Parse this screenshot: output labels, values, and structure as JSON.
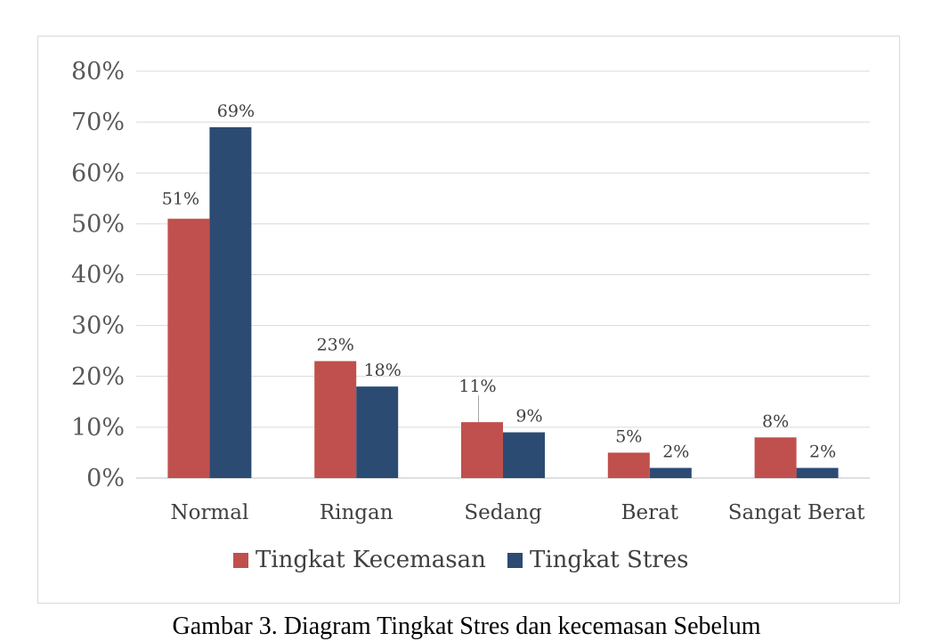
{
  "chart_data": {
    "type": "bar",
    "categories": [
      "Normal",
      "Ringan",
      "Sedang",
      "Berat",
      "Sangat Berat"
    ],
    "series": [
      {
        "name": "Tingkat Kecemasan",
        "color": "#c0504d",
        "values": [
          51,
          23,
          11,
          5,
          8
        ]
      },
      {
        "name": "Tingkat Stres",
        "color": "#2c4b73",
        "values": [
          69,
          18,
          9,
          2,
          2
        ]
      }
    ],
    "ylim": [
      0,
      80
    ],
    "yticks": [
      "0%",
      "10%",
      "20%",
      "30%",
      "40%",
      "50%",
      "60%",
      "70%",
      "80%"
    ],
    "value_suffix": "%",
    "grid": true,
    "legend_position": "bottom"
  },
  "caption": "Gambar 3. Diagram Tingkat Stres dan kecemasan Sebelum"
}
